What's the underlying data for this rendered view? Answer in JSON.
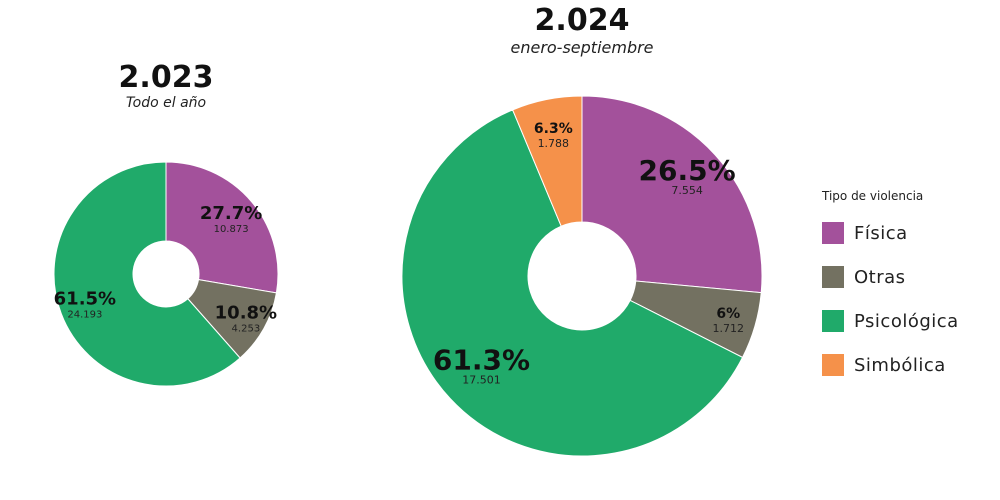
{
  "chart_data": [
    {
      "type": "pie",
      "title": "2.023",
      "subtitle": "Todo el año",
      "slices": [
        {
          "category": "Física",
          "percent": "27.7%",
          "count": "10.873",
          "value": 27.7
        },
        {
          "category": "Otras",
          "percent": "10.8%",
          "count": "4.253",
          "value": 10.8
        },
        {
          "category": "Psicológica",
          "percent": "61.5%",
          "count": "24.193",
          "value": 61.5
        }
      ]
    },
    {
      "type": "pie",
      "title": "2.024",
      "subtitle": "enero-septiembre",
      "slices": [
        {
          "category": "Física",
          "percent": "26.5%",
          "count": "7.554",
          "value": 26.5
        },
        {
          "category": "Otras",
          "percent": "6%",
          "count": "1.712",
          "value": 6.0
        },
        {
          "category": "Psicológica",
          "percent": "61.3%",
          "count": "17.501",
          "value": 61.3
        },
        {
          "category": "Simbólica",
          "percent": "6.3%",
          "count": "1.788",
          "value": 6.3
        }
      ]
    }
  ],
  "legend": {
    "title": "Tipo de violencia",
    "items": [
      {
        "label": "Física",
        "color": "#a3519b"
      },
      {
        "label": "Otras",
        "color": "#737161"
      },
      {
        "label": "Psicológica",
        "color": "#20aa6a"
      },
      {
        "label": "Simbólica",
        "color": "#f5914a"
      }
    ]
  }
}
